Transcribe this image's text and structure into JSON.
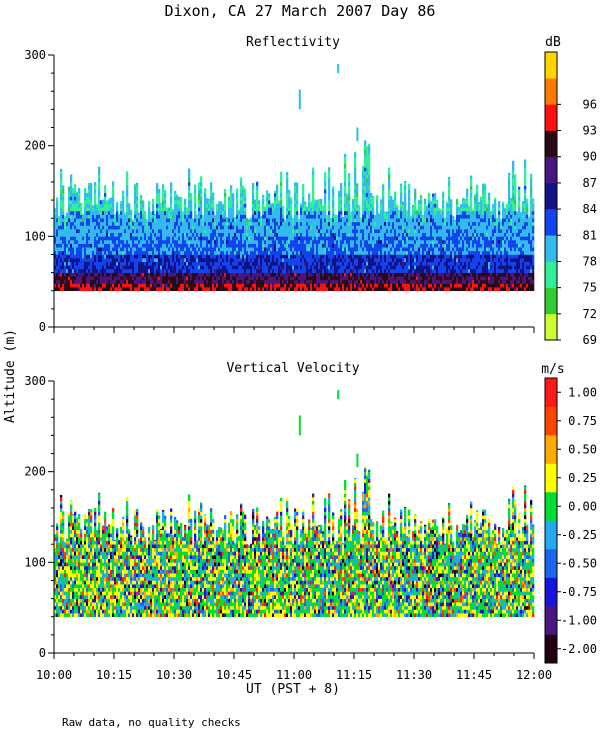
{
  "title": "Dixon, CA 27 March 2007  Day  86",
  "ylabel_shared": "Altitude (m)",
  "footnote": "Raw data, no quality checks",
  "colors": {
    "reflectivity": [
      "#ccff33",
      "#33cc33",
      "#33ee99",
      "#33bbee",
      "#1144ee",
      "#111188",
      "#4b1580",
      "#2a0a14",
      "#ff1010",
      "#ff7a00",
      "#ffd400"
    ],
    "velocity": [
      "#220011",
      "#4b1580",
      "#1515dd",
      "#1a66ee",
      "#22aaee",
      "#00dd33",
      "#ffff00",
      "#ffaa00",
      "#ff4400",
      "#ff1a1a"
    ],
    "background": "#ffffff"
  },
  "chart_data": [
    {
      "type": "heatmap",
      "title": "Reflectivity",
      "xlabel": "UT  (PST + 8)",
      "ylabel": "Altitude (m)",
      "x_ticks": [
        "10:00",
        "10:15",
        "10:30",
        "10:45",
        "11:00",
        "11:15",
        "11:30",
        "11:45",
        "12:00"
      ],
      "y_ticks": [
        "0",
        "100",
        "200",
        "300"
      ],
      "ylim": [
        0,
        300
      ],
      "xlim": [
        "10:00",
        "12:00"
      ],
      "colorbar_label": "dB",
      "colorbar_ticks": [
        "69",
        "72",
        "75",
        "78",
        "81",
        "84",
        "87",
        "90",
        "93",
        "96"
      ],
      "colorbar_range": [
        67.5,
        99
      ],
      "data_altitude_range": [
        40,
        220
      ],
      "layer_profile": [
        {
          "altitude_m": 40,
          "value": 90
        },
        {
          "altitude_m": 60,
          "value": 86
        },
        {
          "altitude_m": 80,
          "value": 81
        },
        {
          "altitude_m": 100,
          "value": 79
        },
        {
          "altitude_m": 120,
          "value": 77
        },
        {
          "altitude_m": 140,
          "value": 75
        }
      ]
    },
    {
      "type": "heatmap",
      "title": "Vertical Velocity",
      "xlabel": "UT  (PST + 8)",
      "ylabel": "Altitude (m)",
      "x_ticks": [
        "10:00",
        "10:15",
        "10:30",
        "10:45",
        "11:00",
        "11:15",
        "11:30",
        "11:45",
        "12:00"
      ],
      "y_ticks": [
        "0",
        "100",
        "200",
        "300"
      ],
      "ylim": [
        0,
        300
      ],
      "xlim": [
        "10:00",
        "12:00"
      ],
      "colorbar_label": "m/s",
      "colorbar_ticks": [
        "-2.00",
        "-1.00",
        "-0.75",
        "-0.50",
        "-0.25",
        "0.00",
        "0.25",
        "0.50",
        "0.75",
        "1.00"
      ],
      "colorbar_levels": [
        -2.0,
        -1.0,
        -0.75,
        -0.5,
        -0.25,
        0.0,
        0.25,
        0.5,
        0.75,
        1.0,
        1.25
      ],
      "data_altitude_range": [
        40,
        220
      ],
      "dominant_range": [
        -0.25,
        0.5
      ]
    }
  ]
}
